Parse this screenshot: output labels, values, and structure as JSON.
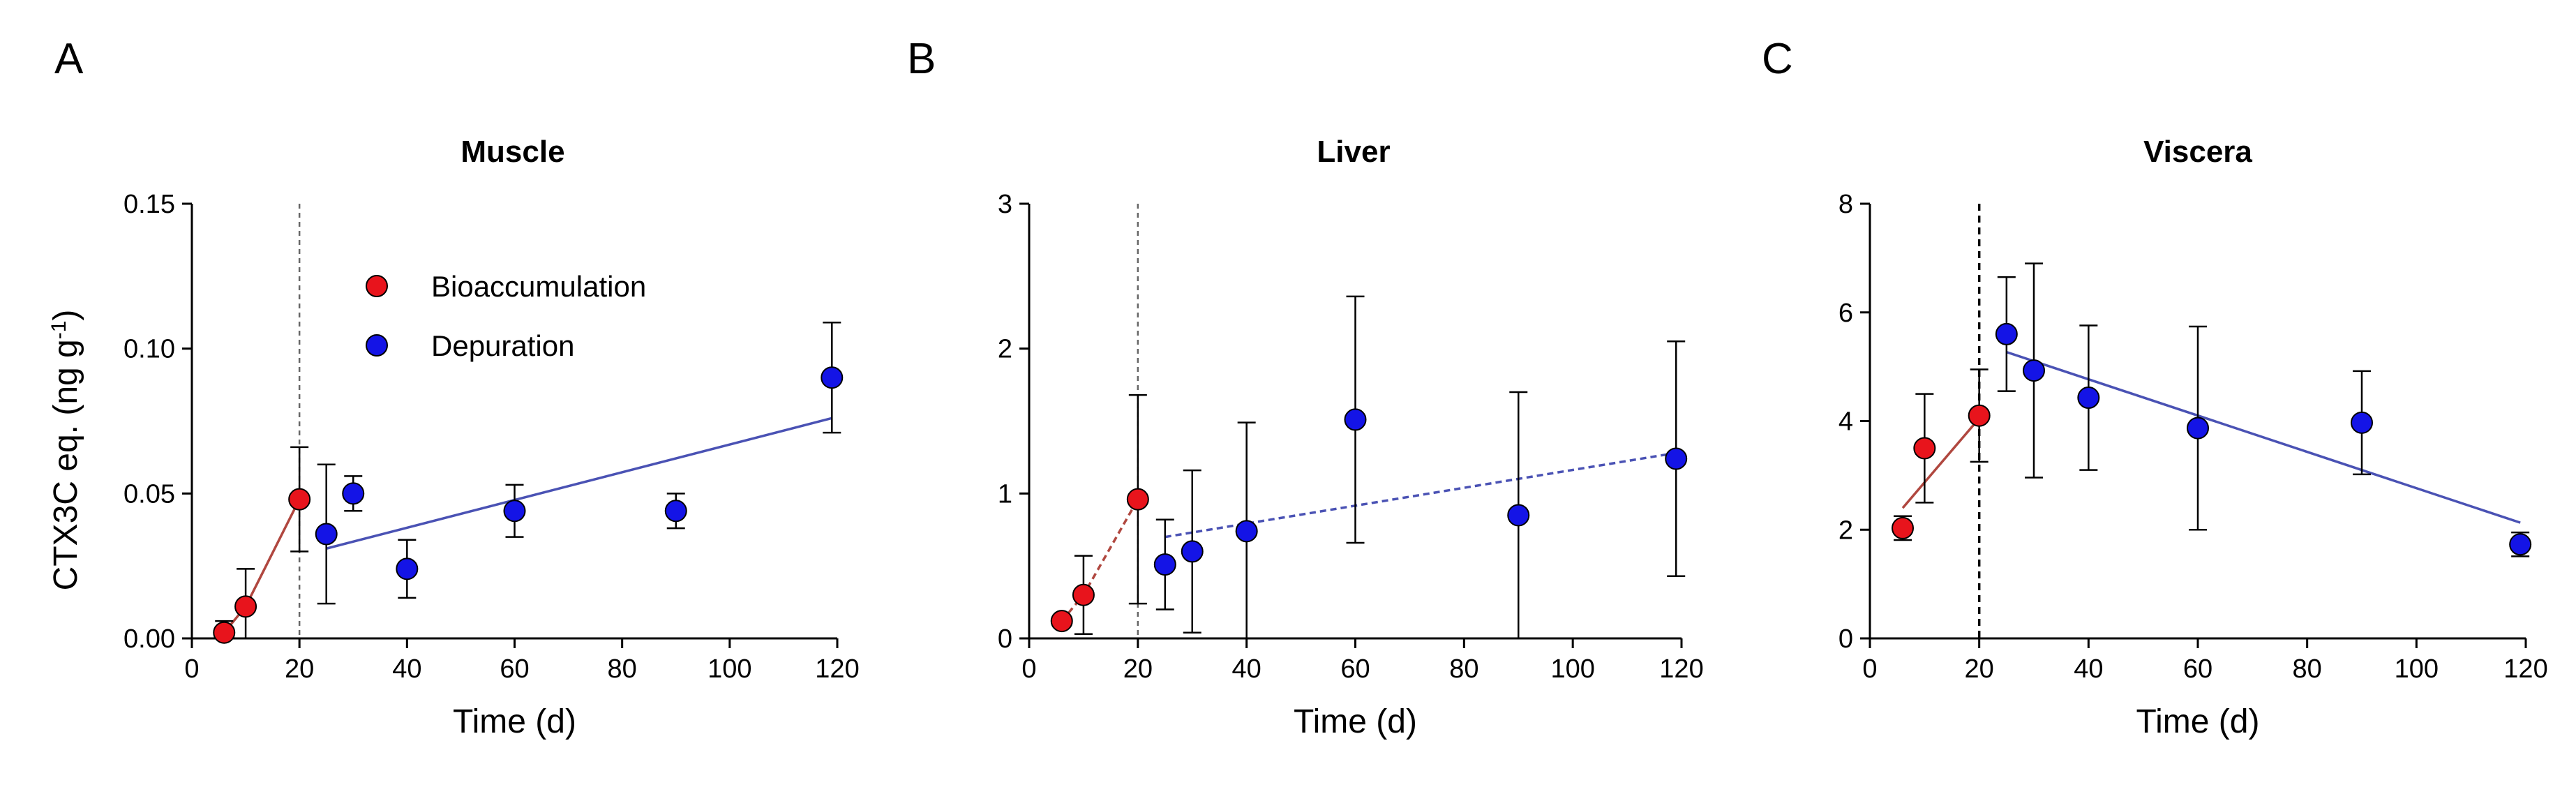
{
  "figure": {
    "y_axis_label": "CTX3C eq. (ng g",
    "y_axis_label_sup": "-1",
    "y_axis_label_close": ")"
  },
  "legend": {
    "bioaccumulation_label": "Bioaccumulation",
    "depuration_label": "Depuration",
    "colors": {
      "bioaccumulation": "#e8141c",
      "depuration": "#1414e6",
      "line_bio": "#b0473f",
      "line_dep": "#4a52b4"
    }
  },
  "chart_data": [
    {
      "type": "scatter",
      "panel_label": "A",
      "title": "Muscle",
      "xlabel": "Time (d)",
      "ylabel": "CTX3C eq. (ng g-1)",
      "xlim": [
        0,
        120
      ],
      "ylim": [
        0,
        0.15
      ],
      "x_ticks": [
        0,
        20,
        40,
        60,
        80,
        100,
        120
      ],
      "x_tick_labels": [
        "0",
        "20",
        "40",
        "60",
        "80",
        "100",
        "120"
      ],
      "y_ticks": [
        0,
        0.05,
        0.1,
        0.15
      ],
      "y_tick_labels": [
        "0.00",
        "0.05",
        "0.10",
        "0.15"
      ],
      "separator_x": 20,
      "separator_style": "thin",
      "fit_style": "solid",
      "series": [
        {
          "name": "Bioaccumulation",
          "x": [
            6,
            10,
            20
          ],
          "y": [
            0.002,
            0.011,
            0.048
          ],
          "err": [
            0.004,
            0.013,
            0.018
          ],
          "fit": [
            [
              6,
              0.002
            ],
            [
              10,
              0.011
            ],
            [
              20,
              0.048
            ]
          ]
        },
        {
          "name": "Depuration",
          "x": [
            25,
            30,
            40,
            60,
            90,
            119
          ],
          "y": [
            0.036,
            0.05,
            0.024,
            0.044,
            0.044,
            0.09
          ],
          "err": [
            0.024,
            0.006,
            0.01,
            0.009,
            0.006,
            0.019
          ],
          "fit": [
            [
              25,
              0.031
            ],
            [
              119,
              0.076
            ]
          ]
        }
      ],
      "legend_position": "top-center"
    },
    {
      "type": "scatter",
      "panel_label": "B",
      "title": "Liver",
      "xlabel": "Time (d)",
      "ylabel": "",
      "xlim": [
        0,
        120
      ],
      "ylim": [
        0,
        3
      ],
      "x_ticks": [
        0,
        20,
        40,
        60,
        80,
        100,
        120
      ],
      "x_tick_labels": [
        "0",
        "20",
        "40",
        "60",
        "80",
        "100",
        "120"
      ],
      "y_ticks": [
        0,
        1,
        2,
        3
      ],
      "y_tick_labels": [
        "0",
        "1",
        "2",
        "3"
      ],
      "separator_x": 20,
      "separator_style": "thin",
      "fit_style": "dashed",
      "series": [
        {
          "name": "Bioaccumulation",
          "x": [
            6,
            10,
            20
          ],
          "y": [
            0.12,
            0.3,
            0.96
          ],
          "err": [
            0.02,
            0.27,
            0.72
          ],
          "fit": [
            [
              6,
              0.12
            ],
            [
              10,
              0.3
            ],
            [
              20,
              0.96
            ]
          ]
        },
        {
          "name": "Depuration",
          "x": [
            25,
            30,
            40,
            60,
            90,
            119
          ],
          "y": [
            0.51,
            0.6,
            0.74,
            1.51,
            0.85,
            1.24
          ],
          "err": [
            0.31,
            0.56,
            0.75,
            0.85,
            0.85,
            0.81
          ],
          "fit": [
            [
              25,
              0.7
            ],
            [
              119,
              1.28
            ]
          ]
        }
      ]
    },
    {
      "type": "scatter",
      "panel_label": "C",
      "title": "Viscera",
      "xlabel": "Time (d)",
      "ylabel": "",
      "xlim": [
        0,
        120
      ],
      "ylim": [
        0,
        8
      ],
      "x_ticks": [
        0,
        20,
        40,
        60,
        80,
        100,
        120
      ],
      "x_tick_labels": [
        "0",
        "20",
        "40",
        "60",
        "80",
        "100",
        "120"
      ],
      "y_ticks": [
        0,
        2,
        4,
        6,
        8
      ],
      "y_tick_labels": [
        "0",
        "2",
        "4",
        "6",
        "8"
      ],
      "separator_x": 20,
      "separator_style": "bold",
      "fit_style": "solid",
      "series": [
        {
          "name": "Bioaccumulation",
          "x": [
            6,
            10,
            20
          ],
          "y": [
            2.03,
            3.5,
            4.1
          ],
          "err": [
            0.22,
            1.0,
            0.85
          ],
          "fit": [
            [
              6,
              2.4
            ],
            [
              20,
              4.05
            ]
          ]
        },
        {
          "name": "Depuration",
          "x": [
            25,
            30,
            40,
            60,
            90,
            119
          ],
          "y": [
            5.6,
            4.93,
            4.43,
            3.87,
            3.97,
            1.73
          ],
          "err": [
            1.05,
            1.97,
            1.33,
            1.87,
            0.95,
            0.22
          ],
          "fit": [
            [
              25,
              5.27
            ],
            [
              119,
              2.13
            ]
          ]
        }
      ]
    }
  ]
}
